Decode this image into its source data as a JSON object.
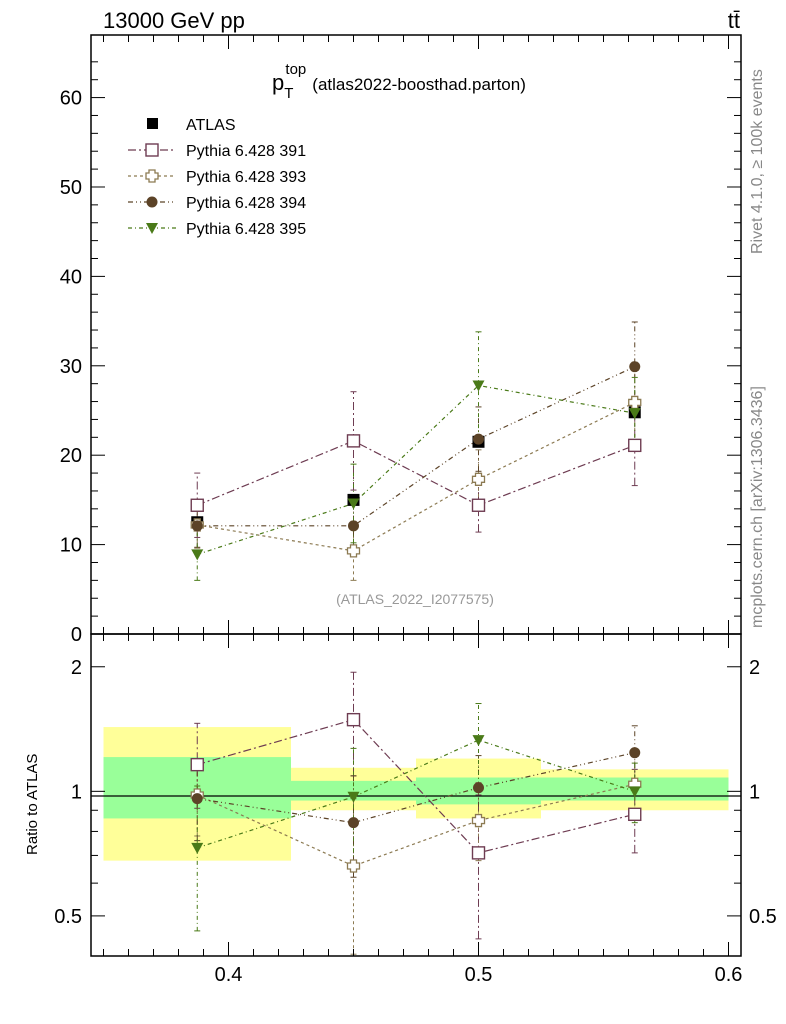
{
  "header": {
    "left": "13000 GeV pp",
    "right": "tt̄"
  },
  "side_labels": {
    "rivet": "Rivet 4.1.0, ≥ 100k events",
    "mcplots": "mcplots.cern.ch [arXiv:1306.3436]"
  },
  "chart_data": [
    {
      "type": "scatter",
      "title_main": "p",
      "title_sub": "T",
      "title_sup": "top",
      "title_rest": "(atlas2022-boosthad.parton)",
      "analysis_label": "(ATLAS_2022_I2077575)",
      "xlim": [
        0.345,
        0.605
      ],
      "ylim": [
        0,
        67
      ],
      "ytick_labels": [
        "0",
        "10",
        "20",
        "30",
        "40",
        "50",
        "60"
      ],
      "reference": {
        "name": "ATLAS",
        "x": [
          0.3875,
          0.45,
          0.5,
          0.5625
        ],
        "y": [
          12.5,
          15.0,
          21.5,
          24.8
        ]
      },
      "series": [
        {
          "name": "Pythia 6.428 391",
          "marker": "open-square",
          "color": "#6e3c52",
          "dash": "8,3,2,3",
          "x": [
            0.3875,
            0.45,
            0.5,
            0.5625
          ],
          "y": [
            14.4,
            21.6,
            14.4,
            21.1
          ],
          "err": [
            3.6,
            5.5,
            3.0,
            4.5
          ]
        },
        {
          "name": "Pythia 6.428 393",
          "marker": "open-cross",
          "color": "#8c7a52",
          "dash": "3,3",
          "x": [
            0.3875,
            0.45,
            0.5,
            0.5625
          ],
          "y": [
            12.2,
            9.3,
            17.3,
            25.9
          ],
          "err": [
            2.6,
            3.3,
            3.3,
            4.5
          ]
        },
        {
          "name": "Pythia 6.428 394",
          "marker": "filled-circle",
          "color": "#5c4327",
          "dash": "5,3,1,3,1,3",
          "x": [
            0.3875,
            0.45,
            0.5,
            0.5625
          ],
          "y": [
            12.1,
            12.1,
            21.8,
            29.9
          ],
          "err": [
            2.4,
            3.0,
            3.6,
            5.0
          ]
        },
        {
          "name": "Pythia 6.428 395",
          "marker": "filled-triangle-down",
          "color": "#4a7a18",
          "dash": "4,3,1,3",
          "x": [
            0.3875,
            0.45,
            0.5,
            0.5625
          ],
          "y": [
            8.9,
            14.6,
            27.8,
            24.7
          ],
          "err": [
            2.9,
            4.4,
            6.0,
            4.0
          ]
        }
      ]
    },
    {
      "type": "scatter",
      "ylabel": "Ratio to ATLAS",
      "yscale": "log",
      "xlim": [
        0.345,
        0.605
      ],
      "ylim": [
        0.4,
        2.4
      ],
      "ytick_labels": [
        "0.5",
        "1",
        "2"
      ],
      "ytick_values": [
        0.5,
        1,
        2
      ],
      "xtick_labels": [
        "0.4",
        "0.5",
        "0.6"
      ],
      "xtick_values": [
        0.4,
        0.5,
        0.6
      ],
      "bands": [
        {
          "xmin": 0.35,
          "xmax": 0.425,
          "yellow": [
            0.68,
            1.43
          ],
          "green": [
            0.86,
            1.21
          ]
        },
        {
          "xmin": 0.425,
          "xmax": 0.475,
          "yellow": [
            0.9,
            1.14
          ],
          "green": [
            0.95,
            1.06
          ]
        },
        {
          "xmin": 0.475,
          "xmax": 0.525,
          "yellow": [
            0.86,
            1.2
          ],
          "green": [
            0.93,
            1.08
          ]
        },
        {
          "xmin": 0.525,
          "xmax": 0.6,
          "yellow": [
            0.9,
            1.13
          ],
          "green": [
            0.95,
            1.08
          ]
        }
      ],
      "series": [
        {
          "name": "Pythia 6.428 391",
          "x": [
            0.3875,
            0.45,
            0.5,
            0.5625
          ],
          "y": [
            1.16,
            1.49,
            0.71,
            0.88
          ],
          "err_lo": [
            0.25,
            0.4,
            0.27,
            0.17
          ],
          "err_hi": [
            0.3,
            0.45,
            0.27,
            0.25
          ]
        },
        {
          "name": "Pythia 6.428 393",
          "x": [
            0.3875,
            0.45,
            0.5,
            0.5625
          ],
          "y": [
            0.98,
            0.66,
            0.85,
            1.04
          ],
          "err_lo": [
            0.2,
            0.28,
            0.17,
            0.18
          ],
          "err_hi": [
            0.22,
            0.3,
            0.2,
            0.2
          ]
        },
        {
          "name": "Pythia 6.428 394",
          "x": [
            0.3875,
            0.45,
            0.5,
            0.5625
          ],
          "y": [
            0.96,
            0.84,
            1.02,
            1.24
          ],
          "err_lo": [
            0.2,
            0.22,
            0.18,
            0.2
          ],
          "err_hi": [
            0.23,
            0.25,
            0.2,
            0.2
          ]
        },
        {
          "name": "Pythia 6.428 395",
          "x": [
            0.3875,
            0.45,
            0.5,
            0.5625
          ],
          "y": [
            0.73,
            0.97,
            1.33,
            1.0
          ],
          "err_lo": [
            0.27,
            0.3,
            0.3,
            0.16
          ],
          "err_hi": [
            0.3,
            0.3,
            0.3,
            0.17
          ]
        }
      ]
    }
  ]
}
